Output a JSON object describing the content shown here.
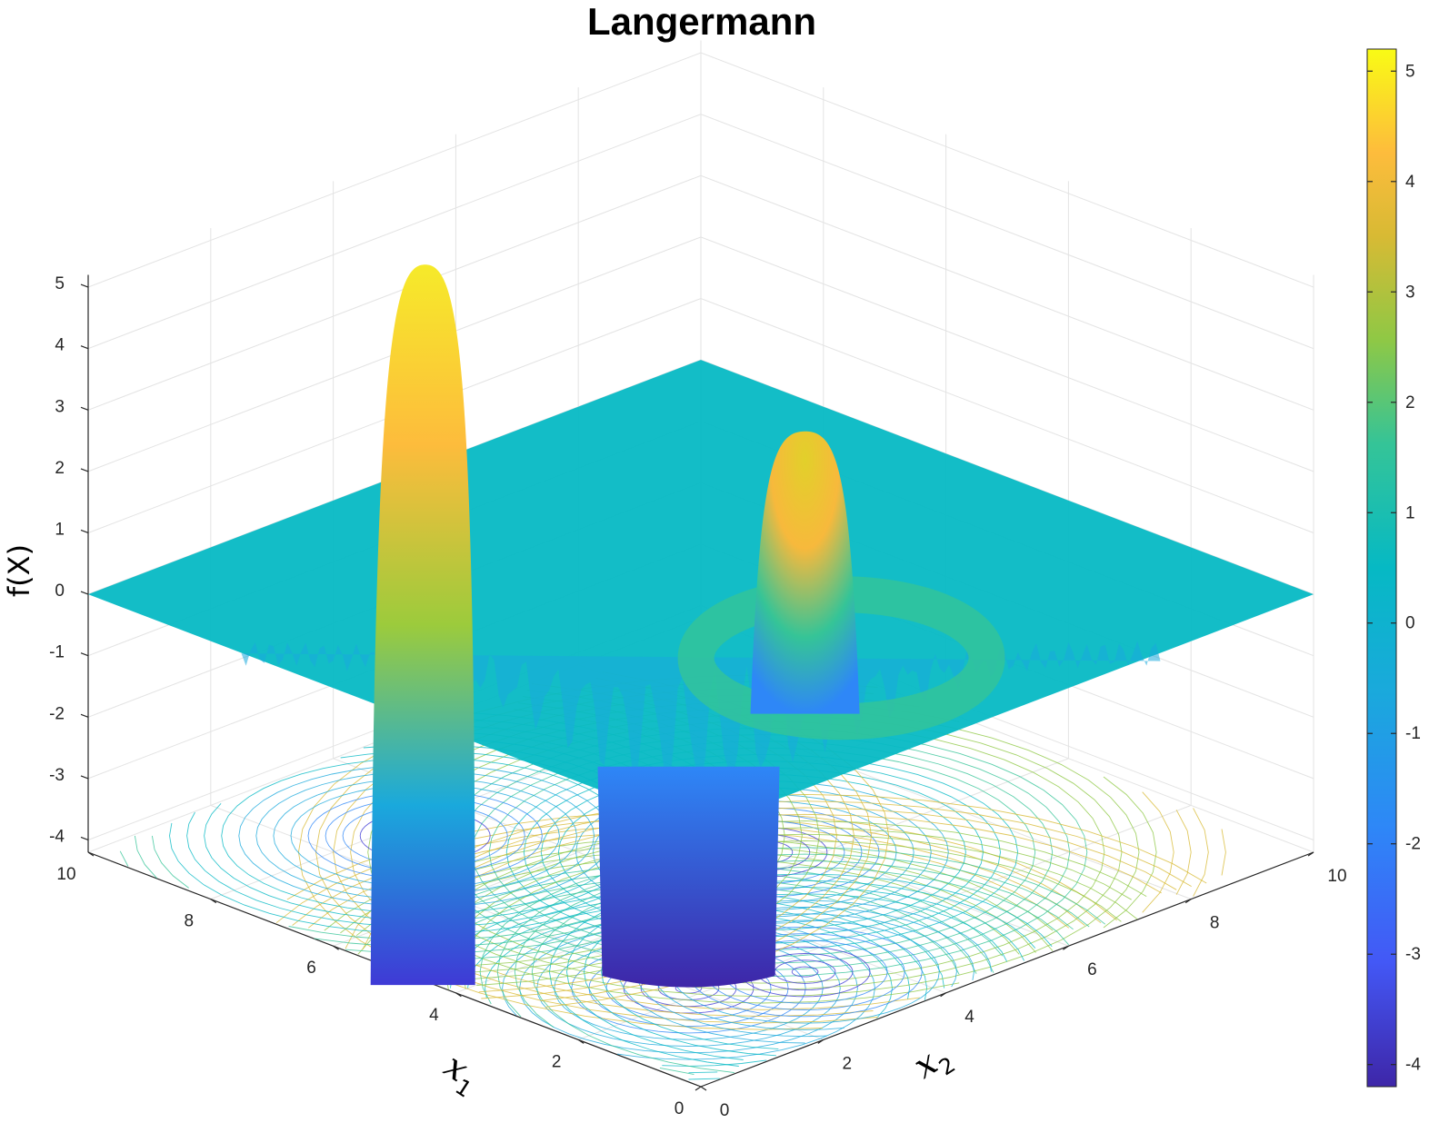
{
  "chart_data": {
    "type": "surface",
    "title": "Langermann",
    "xlabel": "x",
    "xlabel_sub": "1",
    "ylabel": "x",
    "ylabel_sub": "2",
    "zlabel": "f(X)",
    "xlim": [
      0,
      10
    ],
    "ylim": [
      0,
      10
    ],
    "zlim": [
      -4.2,
      5.2
    ],
    "x_ticks": [
      "0",
      "2",
      "4",
      "6",
      "8",
      "10"
    ],
    "y_ticks": [
      "0",
      "2",
      "4",
      "6",
      "8",
      "10"
    ],
    "z_ticks": [
      "-4",
      "-3",
      "-2",
      "-1",
      "0",
      "1",
      "2",
      "3",
      "4",
      "5"
    ],
    "colorbar": {
      "limits": [
        -4.2,
        5.2
      ],
      "ticks": [
        "-4",
        "-3",
        "-2",
        "-1",
        "0",
        "1",
        "2",
        "3",
        "4",
        "5"
      ],
      "colormap": "parula"
    },
    "grid": true,
    "contour_base": true,
    "peaks": [
      {
        "x1": 1.6,
        "x2": 3.3,
        "f": 4.6
      },
      {
        "x1": 7.6,
        "x2": 3.1,
        "f": 5.1
      },
      {
        "x1": 2.2,
        "x2": 2.0,
        "f": -4.0
      }
    ]
  }
}
